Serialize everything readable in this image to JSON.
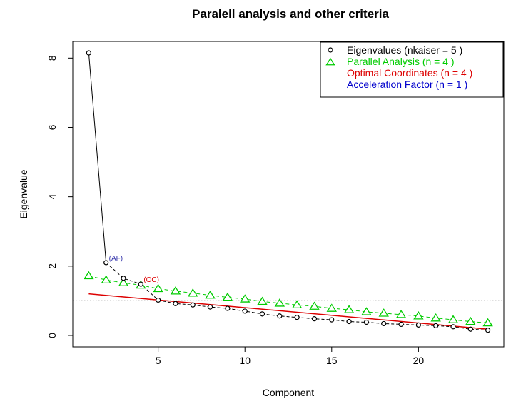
{
  "chart_data": {
    "type": "scatter",
    "title": "Paralell analysis and other criteria",
    "xlabel": "Component",
    "ylabel": "Eigenvalue",
    "xlim": [
      0.08,
      24.92
    ],
    "ylim": [
      -0.33,
      8.48
    ],
    "xticks": [
      5,
      10,
      15,
      20
    ],
    "yticks": [
      0,
      2,
      4,
      6,
      8
    ],
    "grid": false,
    "legend_position": "top-right",
    "kaiser_line": 1,
    "x": [
      1,
      2,
      3,
      4,
      5,
      6,
      7,
      8,
      9,
      10,
      11,
      12,
      13,
      14,
      15,
      16,
      17,
      18,
      19,
      20,
      21,
      22,
      23,
      24
    ],
    "series": [
      {
        "name": "Eigenvalues (nkaiser  = 5 )",
        "marker": "circle",
        "color": "#000000",
        "values": [
          8.15,
          2.1,
          1.65,
          1.48,
          1.02,
          0.92,
          0.88,
          0.82,
          0.78,
          0.7,
          0.62,
          0.56,
          0.52,
          0.48,
          0.45,
          0.4,
          0.38,
          0.34,
          0.32,
          0.3,
          0.28,
          0.25,
          0.18,
          0.15
        ]
      },
      {
        "name": "Parallel Analysis (n  = 4 )",
        "marker": "triangle",
        "color": "#00cc00",
        "values": [
          1.72,
          1.6,
          1.52,
          1.45,
          1.35,
          1.28,
          1.22,
          1.16,
          1.1,
          1.05,
          0.98,
          0.93,
          0.88,
          0.84,
          0.78,
          0.74,
          0.68,
          0.64,
          0.6,
          0.56,
          0.5,
          0.45,
          0.4,
          0.36
        ]
      }
    ],
    "oc_line": {
      "name": "Optimal Coordinates (n = 4 )",
      "color": "#dd0000",
      "x": [
        1,
        24
      ],
      "y": [
        1.2,
        0.18
      ]
    },
    "af_legend": {
      "name": "Acceleration Factor (n = 1 )",
      "color": "#0000cc"
    },
    "annotations": [
      {
        "text": "(AF)",
        "x": 2,
        "y": 2.1,
        "color": "#3333aa"
      },
      {
        "text": "(OC)",
        "x": 4,
        "y": 1.48,
        "color": "#dd0000"
      }
    ]
  }
}
